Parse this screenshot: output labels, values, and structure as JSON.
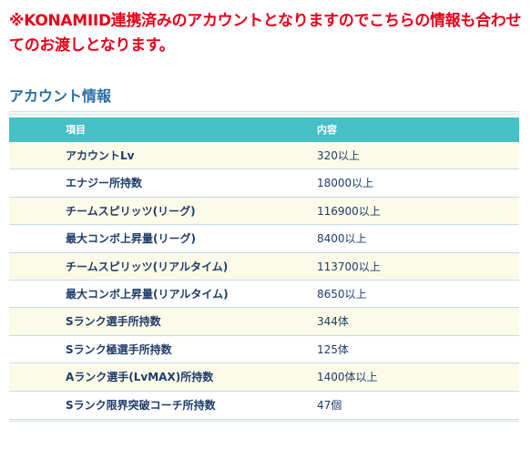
{
  "notice": "※KONAMIID連携済みのアカウントとなりますのでこちらの情報も合わせてのお渡しとなります。",
  "section": {
    "title": "アカウント情報"
  },
  "table": {
    "headers": [
      "項目",
      "内容"
    ],
    "rows": [
      {
        "item": "アカウントLv",
        "value": "320以上"
      },
      {
        "item": "エナジー所持数",
        "value": "18000以上"
      },
      {
        "item": "チームスピリッツ(リーグ)",
        "value": "116900以上"
      },
      {
        "item": "最大コンボ上昇量(リーグ)",
        "value": "8400以上"
      },
      {
        "item": "チームスピリッツ(リアルタイム)",
        "value": "113700以上"
      },
      {
        "item": "最大コンボ上昇量(リアルタイム)",
        "value": "8650以上"
      },
      {
        "item": "Sランク選手所持数",
        "value": "344体"
      },
      {
        "item": "Sランク極選手所持数",
        "value": "125体"
      },
      {
        "item": "Aランク選手(LvMAX)所持数",
        "value": "1400体以上"
      },
      {
        "item": "Sランク限界突破コーチ所持数",
        "value": "47個"
      }
    ]
  }
}
